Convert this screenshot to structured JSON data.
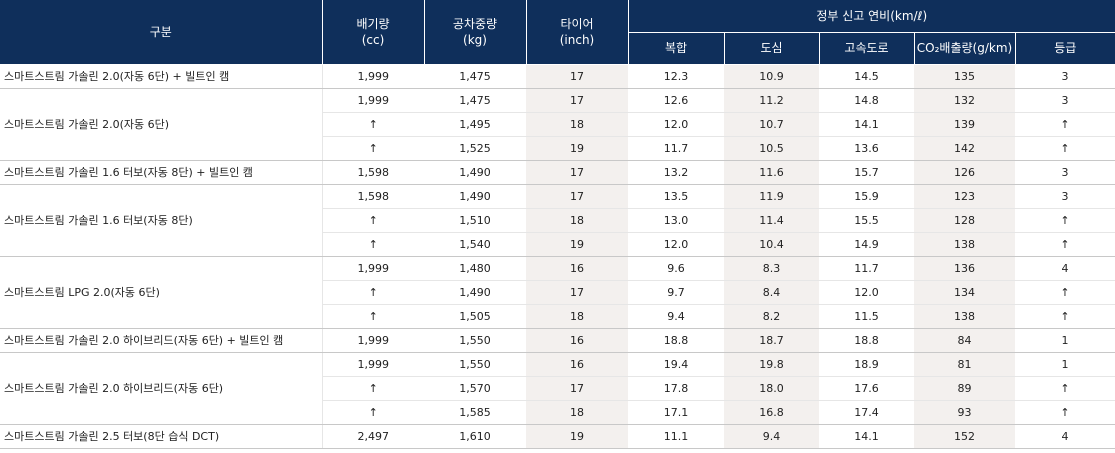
{
  "headers": {
    "category": "구분",
    "displacement": "배기량",
    "displacement_unit": "(cc)",
    "weight": "공차중량",
    "weight_unit": "(kg)",
    "tire": "타이어",
    "tire_unit": "(inch)",
    "fuel_group": "정부 신고 연비(km/ℓ)",
    "combined": "복합",
    "city": "도심",
    "highway": "고속도로",
    "co2": "CO₂배출량(g/km)",
    "grade": "등급"
  },
  "groups": [
    {
      "name": "스마트스트림 가솔린 2.0(자동 6단) + 빌트인 캠",
      "rows": [
        {
          "cc": "1,999",
          "kg": "1,475",
          "tire": "17",
          "combined": "12.3",
          "city": "10.9",
          "highway": "14.5",
          "co2": "135",
          "grade": "3"
        }
      ]
    },
    {
      "name": "스마트스트림 가솔린 2.0(자동 6단)",
      "rows": [
        {
          "cc": "1,999",
          "kg": "1,475",
          "tire": "17",
          "combined": "12.6",
          "city": "11.2",
          "highway": "14.8",
          "co2": "132",
          "grade": "3"
        },
        {
          "cc": "↑",
          "kg": "1,495",
          "tire": "18",
          "combined": "12.0",
          "city": "10.7",
          "highway": "14.1",
          "co2": "139",
          "grade": "↑"
        },
        {
          "cc": "↑",
          "kg": "1,525",
          "tire": "19",
          "combined": "11.7",
          "city": "10.5",
          "highway": "13.6",
          "co2": "142",
          "grade": "↑"
        }
      ]
    },
    {
      "name": "스마트스트림 가솔린 1.6 터보(자동 8단) + 빌트인 캠",
      "rows": [
        {
          "cc": "1,598",
          "kg": "1,490",
          "tire": "17",
          "combined": "13.2",
          "city": "11.6",
          "highway": "15.7",
          "co2": "126",
          "grade": "3"
        }
      ]
    },
    {
      "name": "스마트스트림 가솔린 1.6 터보(자동 8단)",
      "rows": [
        {
          "cc": "1,598",
          "kg": "1,490",
          "tire": "17",
          "combined": "13.5",
          "city": "11.9",
          "highway": "15.9",
          "co2": "123",
          "grade": "3"
        },
        {
          "cc": "↑",
          "kg": "1,510",
          "tire": "18",
          "combined": "13.0",
          "city": "11.4",
          "highway": "15.5",
          "co2": "128",
          "grade": "↑"
        },
        {
          "cc": "↑",
          "kg": "1,540",
          "tire": "19",
          "combined": "12.0",
          "city": "10.4",
          "highway": "14.9",
          "co2": "138",
          "grade": "↑"
        }
      ]
    },
    {
      "name": "스마트스트림 LPG 2.0(자동 6단)",
      "rows": [
        {
          "cc": "1,999",
          "kg": "1,480",
          "tire": "16",
          "combined": "9.6",
          "city": "8.3",
          "highway": "11.7",
          "co2": "136",
          "grade": "4"
        },
        {
          "cc": "↑",
          "kg": "1,490",
          "tire": "17",
          "combined": "9.7",
          "city": "8.4",
          "highway": "12.0",
          "co2": "134",
          "grade": "↑"
        },
        {
          "cc": "↑",
          "kg": "1,505",
          "tire": "18",
          "combined": "9.4",
          "city": "8.2",
          "highway": "11.5",
          "co2": "138",
          "grade": "↑"
        }
      ]
    },
    {
      "name": "스마트스트림 가솔린 2.0 하이브리드(자동 6단) + 빌트인 캠",
      "rows": [
        {
          "cc": "1,999",
          "kg": "1,550",
          "tire": "16",
          "combined": "18.8",
          "city": "18.7",
          "highway": "18.8",
          "co2": "84",
          "grade": "1"
        }
      ]
    },
    {
      "name": "스마트스트림 가솔린 2.0 하이브리드(자동 6단)",
      "rows": [
        {
          "cc": "1,999",
          "kg": "1,550",
          "tire": "16",
          "combined": "19.4",
          "city": "19.8",
          "highway": "18.9",
          "co2": "81",
          "grade": "1"
        },
        {
          "cc": "↑",
          "kg": "1,570",
          "tire": "17",
          "combined": "17.8",
          "city": "18.0",
          "highway": "17.6",
          "co2": "89",
          "grade": "↑"
        },
        {
          "cc": "↑",
          "kg": "1,585",
          "tire": "18",
          "combined": "17.1",
          "city": "16.8",
          "highway": "17.4",
          "co2": "93",
          "grade": "↑"
        }
      ]
    },
    {
      "name": "스마트스트림 가솔린 2.5 터보(8단 습식 DCT)",
      "rows": [
        {
          "cc": "2,497",
          "kg": "1,610",
          "tire": "19",
          "combined": "11.1",
          "city": "9.4",
          "highway": "14.1",
          "co2": "152",
          "grade": "4"
        }
      ]
    }
  ]
}
